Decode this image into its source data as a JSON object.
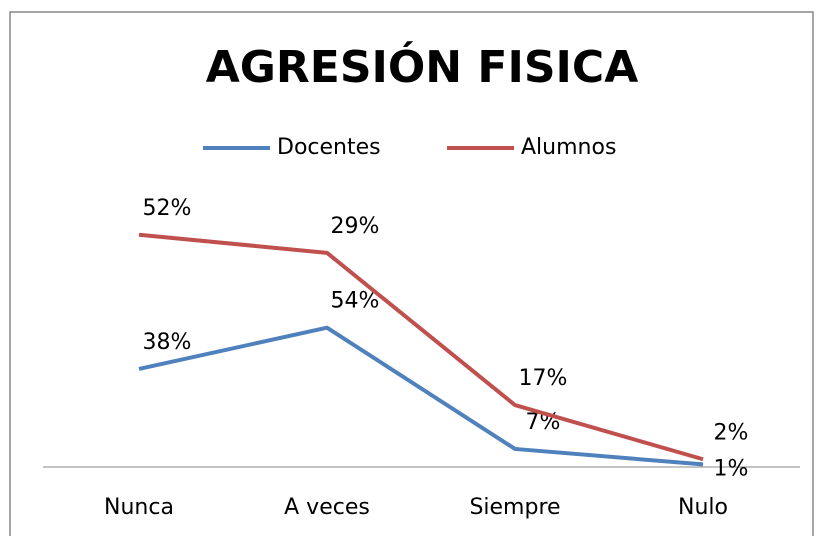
{
  "chart_data": {
    "type": "line",
    "stacked": true,
    "title": "AGRESIÓN FISICA",
    "categories": [
      "Nunca",
      "A veces",
      "Siempre",
      "Nulo"
    ],
    "series": [
      {
        "name": "Docentes",
        "color": "#4f81bd",
        "values": [
          38,
          54,
          7,
          1
        ],
        "value_labels": [
          "38%",
          "54%",
          "7%",
          "1%"
        ]
      },
      {
        "name": "Alumnos",
        "color": "#c0504d",
        "values": [
          52,
          29,
          17,
          2
        ],
        "value_labels": [
          "52%",
          "29%",
          "17%",
          "2%"
        ]
      }
    ],
    "ylim": [
      0,
      100
    ],
    "legend": "top"
  }
}
